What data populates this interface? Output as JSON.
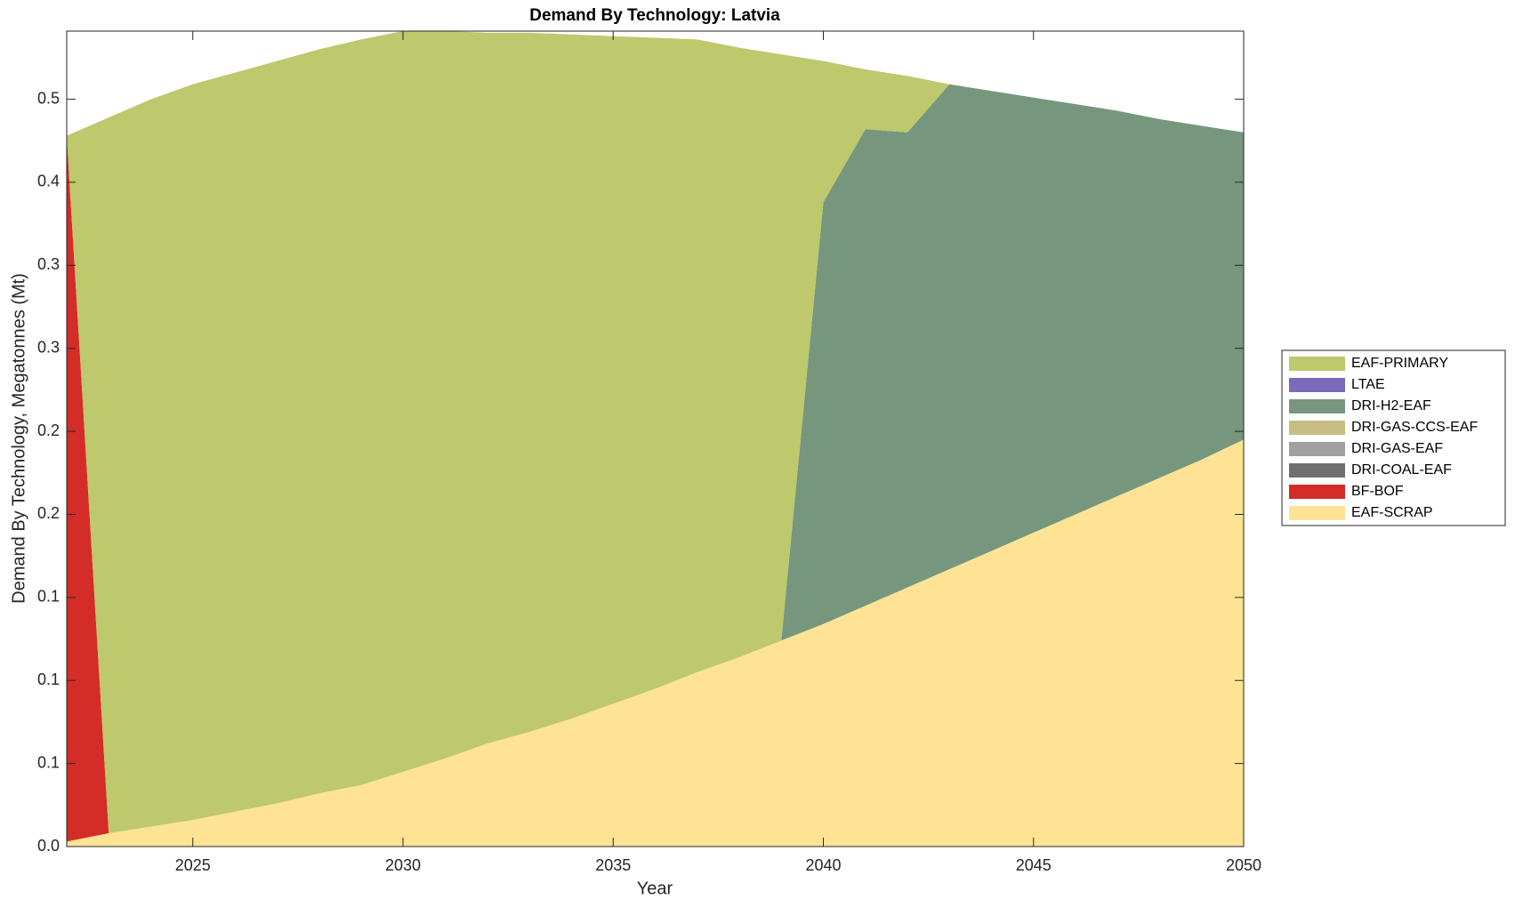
{
  "chart_data": {
    "type": "stacked_area",
    "title": "Demand By Technology: Latvia",
    "x_label": "Year",
    "y_label": "Demand By Technology, Megatonnes (Mt)",
    "x": [
      2022,
      2023,
      2024,
      2025,
      2026,
      2027,
      2028,
      2029,
      2030,
      2031,
      2032,
      2033,
      2034,
      2035,
      2036,
      2037,
      2038,
      2039,
      2040,
      2041,
      2042,
      2043,
      2044,
      2045,
      2046,
      2047,
      2048,
      2049,
      2050
    ],
    "xlim": [
      2022,
      2050
    ],
    "xticks": [
      2025,
      2030,
      2035,
      2040,
      2045,
      2050
    ],
    "ylim": [
      0,
      0.491
    ],
    "yticks": [
      {
        "value": 0,
        "label": "0.0"
      },
      {
        "value": 0.05,
        "label": "0.1"
      },
      {
        "value": 0.1,
        "label": "0.1"
      },
      {
        "value": 0.15,
        "label": "0.1"
      },
      {
        "value": 0.2,
        "label": "0.2"
      },
      {
        "value": 0.25,
        "label": "0.2"
      },
      {
        "value": 0.3,
        "label": "0.3"
      },
      {
        "value": 0.35,
        "label": "0.3"
      },
      {
        "value": 0.4,
        "label": "0.4"
      },
      {
        "value": 0.45,
        "label": "0.5"
      }
    ],
    "legend_position": "right",
    "series": [
      {
        "name": "EAF-SCRAP",
        "color": "#fde393",
        "values": [
          0.003,
          0.008,
          0.012,
          0.016,
          0.021,
          0.026,
          0.032,
          0.037,
          0.045,
          0.053,
          0.062,
          0.069,
          0.077,
          0.086,
          0.095,
          0.105,
          0.114,
          0.124,
          0.134,
          0.145,
          0.156,
          0.167,
          0.178,
          0.189,
          0.2,
          0.211,
          0.222,
          0.233,
          0.245
        ]
      },
      {
        "name": "BF-BOF",
        "color": "#d42c27",
        "values": [
          0.425,
          0,
          0,
          0,
          0,
          0,
          0,
          0,
          0,
          0,
          0,
          0,
          0,
          0,
          0,
          0,
          0,
          0,
          0,
          0,
          0,
          0,
          0,
          0,
          0,
          0,
          0,
          0,
          0
        ]
      },
      {
        "name": "DRI-COAL-EAF",
        "color": "#6f6f6f",
        "values": [
          0,
          0,
          0,
          0,
          0,
          0,
          0,
          0,
          0,
          0,
          0,
          0,
          0,
          0,
          0,
          0,
          0,
          0,
          0,
          0,
          0,
          0,
          0,
          0,
          0,
          0,
          0,
          0,
          0
        ]
      },
      {
        "name": "DRI-GAS-EAF",
        "color": "#a0a0a0",
        "values": [
          0,
          0,
          0,
          0,
          0,
          0,
          0,
          0,
          0,
          0,
          0,
          0,
          0,
          0,
          0,
          0,
          0,
          0,
          0,
          0,
          0,
          0,
          0,
          0,
          0,
          0,
          0,
          0,
          0
        ]
      },
      {
        "name": "DRI-GAS-CCS-EAF",
        "color": "#c6bd80",
        "values": [
          0,
          0,
          0,
          0,
          0,
          0,
          0,
          0,
          0,
          0,
          0,
          0,
          0,
          0,
          0,
          0,
          0,
          0,
          0,
          0,
          0,
          0,
          0,
          0,
          0,
          0,
          0,
          0,
          0
        ]
      },
      {
        "name": "DRI-H2-EAF",
        "color": "#76977d",
        "values": [
          0,
          0,
          0,
          0,
          0,
          0,
          0,
          0,
          0,
          0,
          0,
          0,
          0,
          0,
          0,
          0,
          0,
          0,
          0.254,
          0.287,
          0.274,
          0.292,
          0.277,
          0.262,
          0.247,
          0.232,
          0.216,
          0.201,
          0.185
        ]
      },
      {
        "name": "LTAE",
        "color": "#7b6bbd",
        "values": [
          0,
          0,
          0,
          0,
          0,
          0,
          0,
          0,
          0,
          0,
          0,
          0,
          0,
          0,
          0,
          0,
          0,
          0,
          0,
          0,
          0,
          0,
          0,
          0,
          0,
          0,
          0,
          0,
          0
        ]
      },
      {
        "name": "EAF-PRIMARY",
        "color": "#bec86c",
        "values": [
          0,
          0.431,
          0.438,
          0.443,
          0.445,
          0.447,
          0.448,
          0.449,
          0.446,
          0.438,
          0.428,
          0.421,
          0.412,
          0.402,
          0.392,
          0.381,
          0.367,
          0.353,
          0.085,
          0.036,
          0.034,
          0,
          0,
          0,
          0,
          0,
          0,
          0,
          0
        ]
      }
    ]
  }
}
